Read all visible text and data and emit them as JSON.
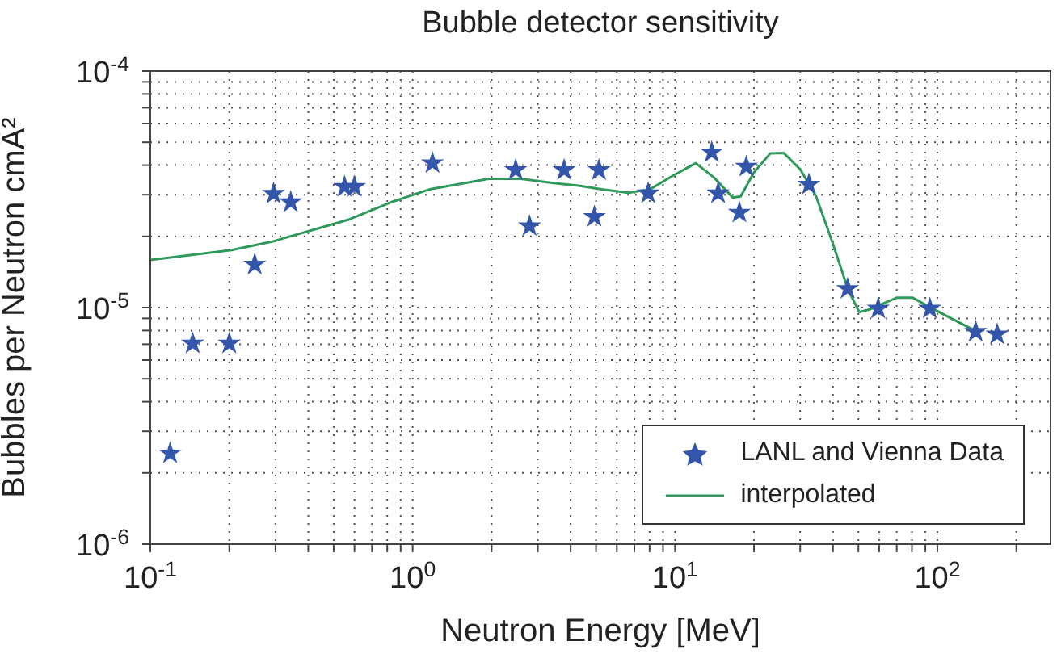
{
  "chart_data": {
    "type": "scatter",
    "title": "Bubble detector sensitivity",
    "xlabel": "Neutron Energy [MeV]",
    "ylabel": "Bubbles per Neutron cmÂ²",
    "log": "xy",
    "grid": true,
    "legend": "bottom right",
    "xlim": [
      0.1,
      270
    ],
    "ylim": [
      1e-06,
      0.0001
    ],
    "xticks": [
      {
        "value": 0.1,
        "label": "10$^{-1}$"
      },
      {
        "value": 0.2,
        "label": null
      },
      {
        "value": 0.3,
        "label": null
      },
      {
        "value": 0.4,
        "label": null
      },
      {
        "value": 0.5,
        "label": null
      },
      {
        "value": 0.6,
        "label": null
      },
      {
        "value": 0.7,
        "label": null
      },
      {
        "value": 0.8,
        "label": null
      },
      {
        "value": 0.9,
        "label": null
      },
      {
        "value": 1,
        "label": "10$^{0}$"
      },
      {
        "value": 2,
        "label": null
      },
      {
        "value": 3,
        "label": null
      },
      {
        "value": 4,
        "label": null
      },
      {
        "value": 5,
        "label": null
      },
      {
        "value": 6,
        "label": null
      },
      {
        "value": 7,
        "label": null
      },
      {
        "value": 8,
        "label": null
      },
      {
        "value": 9,
        "label": null
      },
      {
        "value": 10,
        "label": "10$^{1}$"
      },
      {
        "value": 20,
        "label": null
      },
      {
        "value": 30,
        "label": null
      },
      {
        "value": 40,
        "label": null
      },
      {
        "value": 50,
        "label": null
      },
      {
        "value": 60,
        "label": null
      },
      {
        "value": 70,
        "label": null
      },
      {
        "value": 80,
        "label": null
      },
      {
        "value": 90,
        "label": null
      },
      {
        "value": 100,
        "label": "10$^{2}$"
      },
      {
        "value": 200,
        "label": null
      }
    ],
    "yticks": [
      {
        "value": 1e-06,
        "label": "10$^{-6}$"
      },
      {
        "value": 2e-06,
        "label": null
      },
      {
        "value": 3e-06,
        "label": null
      },
      {
        "value": 4e-06,
        "label": null
      },
      {
        "value": 5e-06,
        "label": null
      },
      {
        "value": 6e-06,
        "label": null
      },
      {
        "value": 7e-06,
        "label": null
      },
      {
        "value": 8e-06,
        "label": null
      },
      {
        "value": 9e-06,
        "label": null
      },
      {
        "value": 1e-05,
        "label": "10$^{-5}$"
      },
      {
        "value": 2e-05,
        "label": null
      },
      {
        "value": 3e-05,
        "label": null
      },
      {
        "value": 4e-05,
        "label": null
      },
      {
        "value": 5e-05,
        "label": null
      },
      {
        "value": 6e-05,
        "label": null
      },
      {
        "value": 7e-05,
        "label": null
      },
      {
        "value": 8e-05,
        "label": null
      },
      {
        "value": 9e-05,
        "label": null
      },
      {
        "value": 0.0001,
        "label": "10$^{-4}$"
      }
    ],
    "series": [
      {
        "name": "LANL and Vienna Data",
        "type": "scatter",
        "marker": "star",
        "color": "#3355aa",
        "x": [
          0.119,
          0.145,
          0.2,
          0.25,
          0.295,
          0.343,
          0.55,
          0.6,
          1.19,
          2.47,
          2.79,
          3.78,
          5.13,
          4.93,
          7.9,
          13.8,
          14.6,
          17.6,
          18.7,
          32.4,
          45.5,
          59.5,
          93.6,
          140,
          169
        ],
        "values": [
          2.42e-06,
          7.05e-06,
          7.05e-06,
          1.52e-05,
          3.03e-05,
          2.79e-05,
          3.24e-05,
          3.24e-05,
          4.08e-05,
          3.81e-05,
          2.21e-05,
          3.81e-05,
          3.81e-05,
          2.42e-05,
          3.04e-05,
          4.53e-05,
          3.04e-05,
          2.52e-05,
          3.94e-05,
          3.31e-05,
          1.2e-05,
          9.9e-06,
          9.9e-06,
          7.9e-06,
          7.7e-06
        ]
      },
      {
        "name": "interpolated",
        "type": "line",
        "marker": "none",
        "line_style": "solid",
        "color": "#2e9a5a",
        "x": [
          0.1,
          0.204,
          0.296,
          0.574,
          0.836,
          1.16,
          1.95,
          2.59,
          3.44,
          4.35,
          5.25,
          6.64,
          8.02,
          9.68,
          12,
          14.1,
          16.6,
          17.8,
          20,
          23.1,
          26,
          30,
          34.5,
          39.8,
          45.8,
          50.4,
          55.2,
          69.9,
          80.6,
          97.3,
          140
        ],
        "values": [
          1.59e-05,
          1.75e-05,
          1.91e-05,
          2.36e-05,
          2.8e-05,
          3.16e-05,
          3.5e-05,
          3.5e-05,
          3.36e-05,
          3.27e-05,
          3.16e-05,
          3.06e-05,
          3.16e-05,
          3.58e-05,
          4.08e-05,
          3.54e-05,
          2.92e-05,
          2.95e-05,
          3.73e-05,
          4.49e-05,
          4.5e-05,
          3.84e-05,
          2.95e-05,
          1.89e-05,
          1.18e-05,
          9.57e-06,
          9.82e-06,
          1.1e-05,
          1.1e-05,
          9.82e-06,
          7.95e-06
        ]
      }
    ]
  }
}
